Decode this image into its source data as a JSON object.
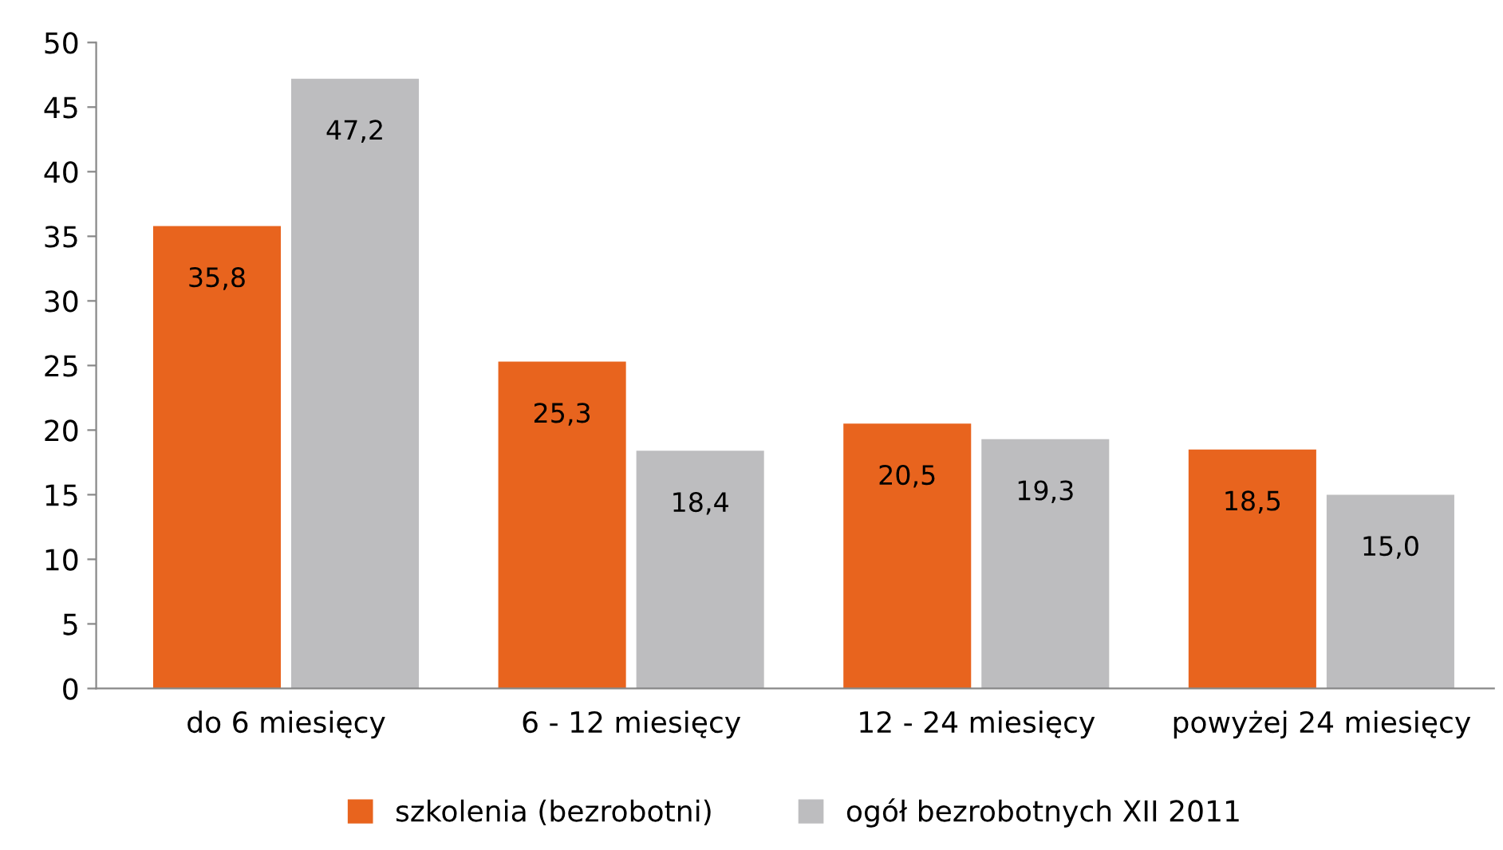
{
  "chart_data": {
    "type": "bar",
    "categories": [
      "do 6 miesięcy",
      "6 - 12 miesięcy",
      "12 - 24 miesięcy",
      "powyżej 24 miesięcy"
    ],
    "series": [
      {
        "name": "szkolenia (bezrobotni)",
        "color": "#e8641e",
        "values": [
          35.8,
          25.3,
          20.5,
          18.5
        ],
        "value_labels": [
          "35,8",
          "25,3",
          "20,5",
          "18,5"
        ]
      },
      {
        "name": "ogół bezrobotnych XII 2011",
        "color": "#bdbdbf",
        "values": [
          47.2,
          18.4,
          19.3,
          15.0
        ],
        "value_labels": [
          "47,2",
          "18,4",
          "19,3",
          "15,0"
        ]
      }
    ],
    "ylim": [
      0,
      50
    ],
    "yticks": [
      0,
      5,
      10,
      15,
      20,
      25,
      30,
      35,
      40,
      45,
      50
    ],
    "grid": false,
    "legend": "bottom"
  }
}
